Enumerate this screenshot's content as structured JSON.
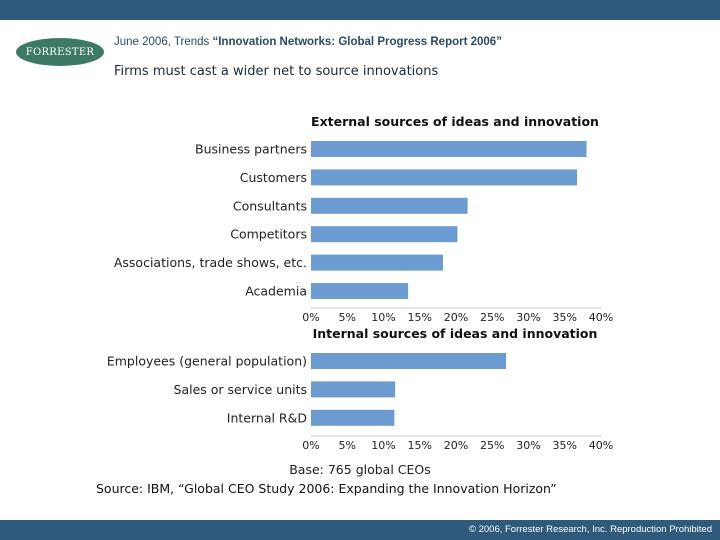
{
  "header": {
    "logo_text": "FORRESTER",
    "date_prefix": "June 2006, Trends ",
    "report_title": "“Innovation Networks: Global Progress Report 2006”",
    "slide_title": "Firms must cast a wider net to source innovations",
    "logo_color": "#3d7a66",
    "bar_color": "#2f5a7c"
  },
  "chart_data": [
    {
      "type": "bar",
      "orientation": "horizontal",
      "title": "External sources of ideas and innovation",
      "categories": [
        "Business partners",
        "Customers",
        "Consultants",
        "Competitors",
        "Associations, trade shows, etc.",
        "Academia"
      ],
      "values": [
        38,
        36.7,
        21.6,
        20.2,
        18.2,
        13.4
      ],
      "xlim": [
        0,
        40
      ],
      "xticks": [
        "0%",
        "5%",
        "10%",
        "15%",
        "20%",
        "25%",
        "30%",
        "35%",
        "40%"
      ],
      "grid": false,
      "bar_color": "#6b9bd1"
    },
    {
      "type": "bar",
      "orientation": "horizontal",
      "title": "Internal sources of ideas and innovation",
      "categories": [
        "Employees (general population)",
        "Sales or service units",
        "Internal R&D"
      ],
      "values": [
        26.9,
        11.6,
        11.5
      ],
      "xlim": [
        0,
        40
      ],
      "xticks": [
        "0%",
        "5%",
        "10%",
        "15%",
        "20%",
        "25%",
        "30%",
        "35%",
        "40%"
      ],
      "grid": false,
      "bar_color": "#6b9bd1"
    }
  ],
  "footer": {
    "base": "Base: 765 global CEOs",
    "source": "Source: IBM, “Global CEO Study 2006: Expanding the Innovation Horizon”",
    "copyright": "© 2006, Forrester Research, Inc. Reproduction Prohibited"
  }
}
